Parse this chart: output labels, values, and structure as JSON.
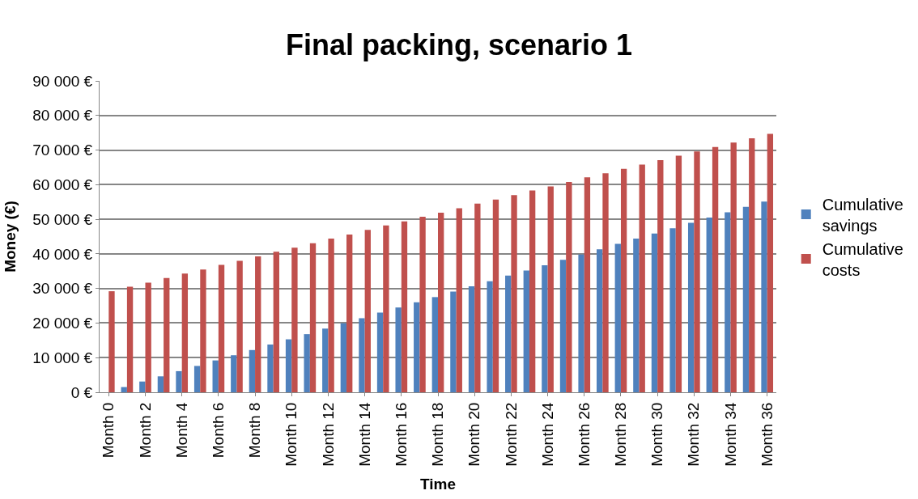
{
  "chart_data": {
    "type": "bar",
    "title": "Final packing, scenario 1",
    "xlabel": "Time",
    "ylabel": "Money (€)",
    "categories": [
      "Month 0",
      null,
      "Month 2",
      null,
      "Month 4",
      null,
      "Month 6",
      null,
      "Month 8",
      null,
      "Month 10",
      null,
      "Month 12",
      null,
      "Month 14",
      null,
      "Month 16",
      null,
      "Month 18",
      null,
      "Month 20",
      null,
      "Month 22",
      null,
      "Month 24",
      null,
      "Month 26",
      null,
      "Month 28",
      null,
      "Month 30",
      null,
      "Month 32",
      null,
      "Month 34",
      null,
      "Month 36"
    ],
    "series": [
      {
        "name": "Cumulative savings",
        "color": "#4f81bd",
        "values": [
          0,
          1500,
          3100,
          4600,
          6100,
          7600,
          9200,
          10700,
          12200,
          13800,
          15300,
          16800,
          18400,
          19900,
          21400,
          23000,
          24500,
          26000,
          27500,
          29100,
          30600,
          32100,
          33700,
          35200,
          36700,
          38300,
          39800,
          41300,
          42900,
          44400,
          45900,
          47400,
          49000,
          50500,
          52000,
          53600,
          55100
        ]
      },
      {
        "name": "Cumulative costs",
        "color": "#c0504d",
        "values": [
          29200,
          30500,
          31700,
          33000,
          34300,
          35500,
          36800,
          38000,
          39300,
          40600,
          41800,
          43100,
          44400,
          45600,
          46900,
          48200,
          49400,
          50700,
          51900,
          53200,
          54500,
          55700,
          57000,
          58300,
          59500,
          60800,
          62100,
          63300,
          64600,
          65800,
          67100,
          68400,
          69600,
          70900,
          72200,
          73400,
          74700
        ]
      }
    ],
    "ylim": [
      0,
      90000
    ],
    "yticks": [
      {
        "value": 0,
        "label": "0 €"
      },
      {
        "value": 10000,
        "label": "10 000 €"
      },
      {
        "value": 20000,
        "label": "20 000 €"
      },
      {
        "value": 30000,
        "label": "30 000 €"
      },
      {
        "value": 40000,
        "label": "40 000 €"
      },
      {
        "value": 50000,
        "label": "50 000 €"
      },
      {
        "value": 60000,
        "label": "60 000 €"
      },
      {
        "value": 70000,
        "label": "70 000 €"
      },
      {
        "value": 80000,
        "label": "80 000 €"
      },
      {
        "value": 90000,
        "label": "90 000 €"
      }
    ],
    "grid": "y",
    "legend": "right"
  }
}
